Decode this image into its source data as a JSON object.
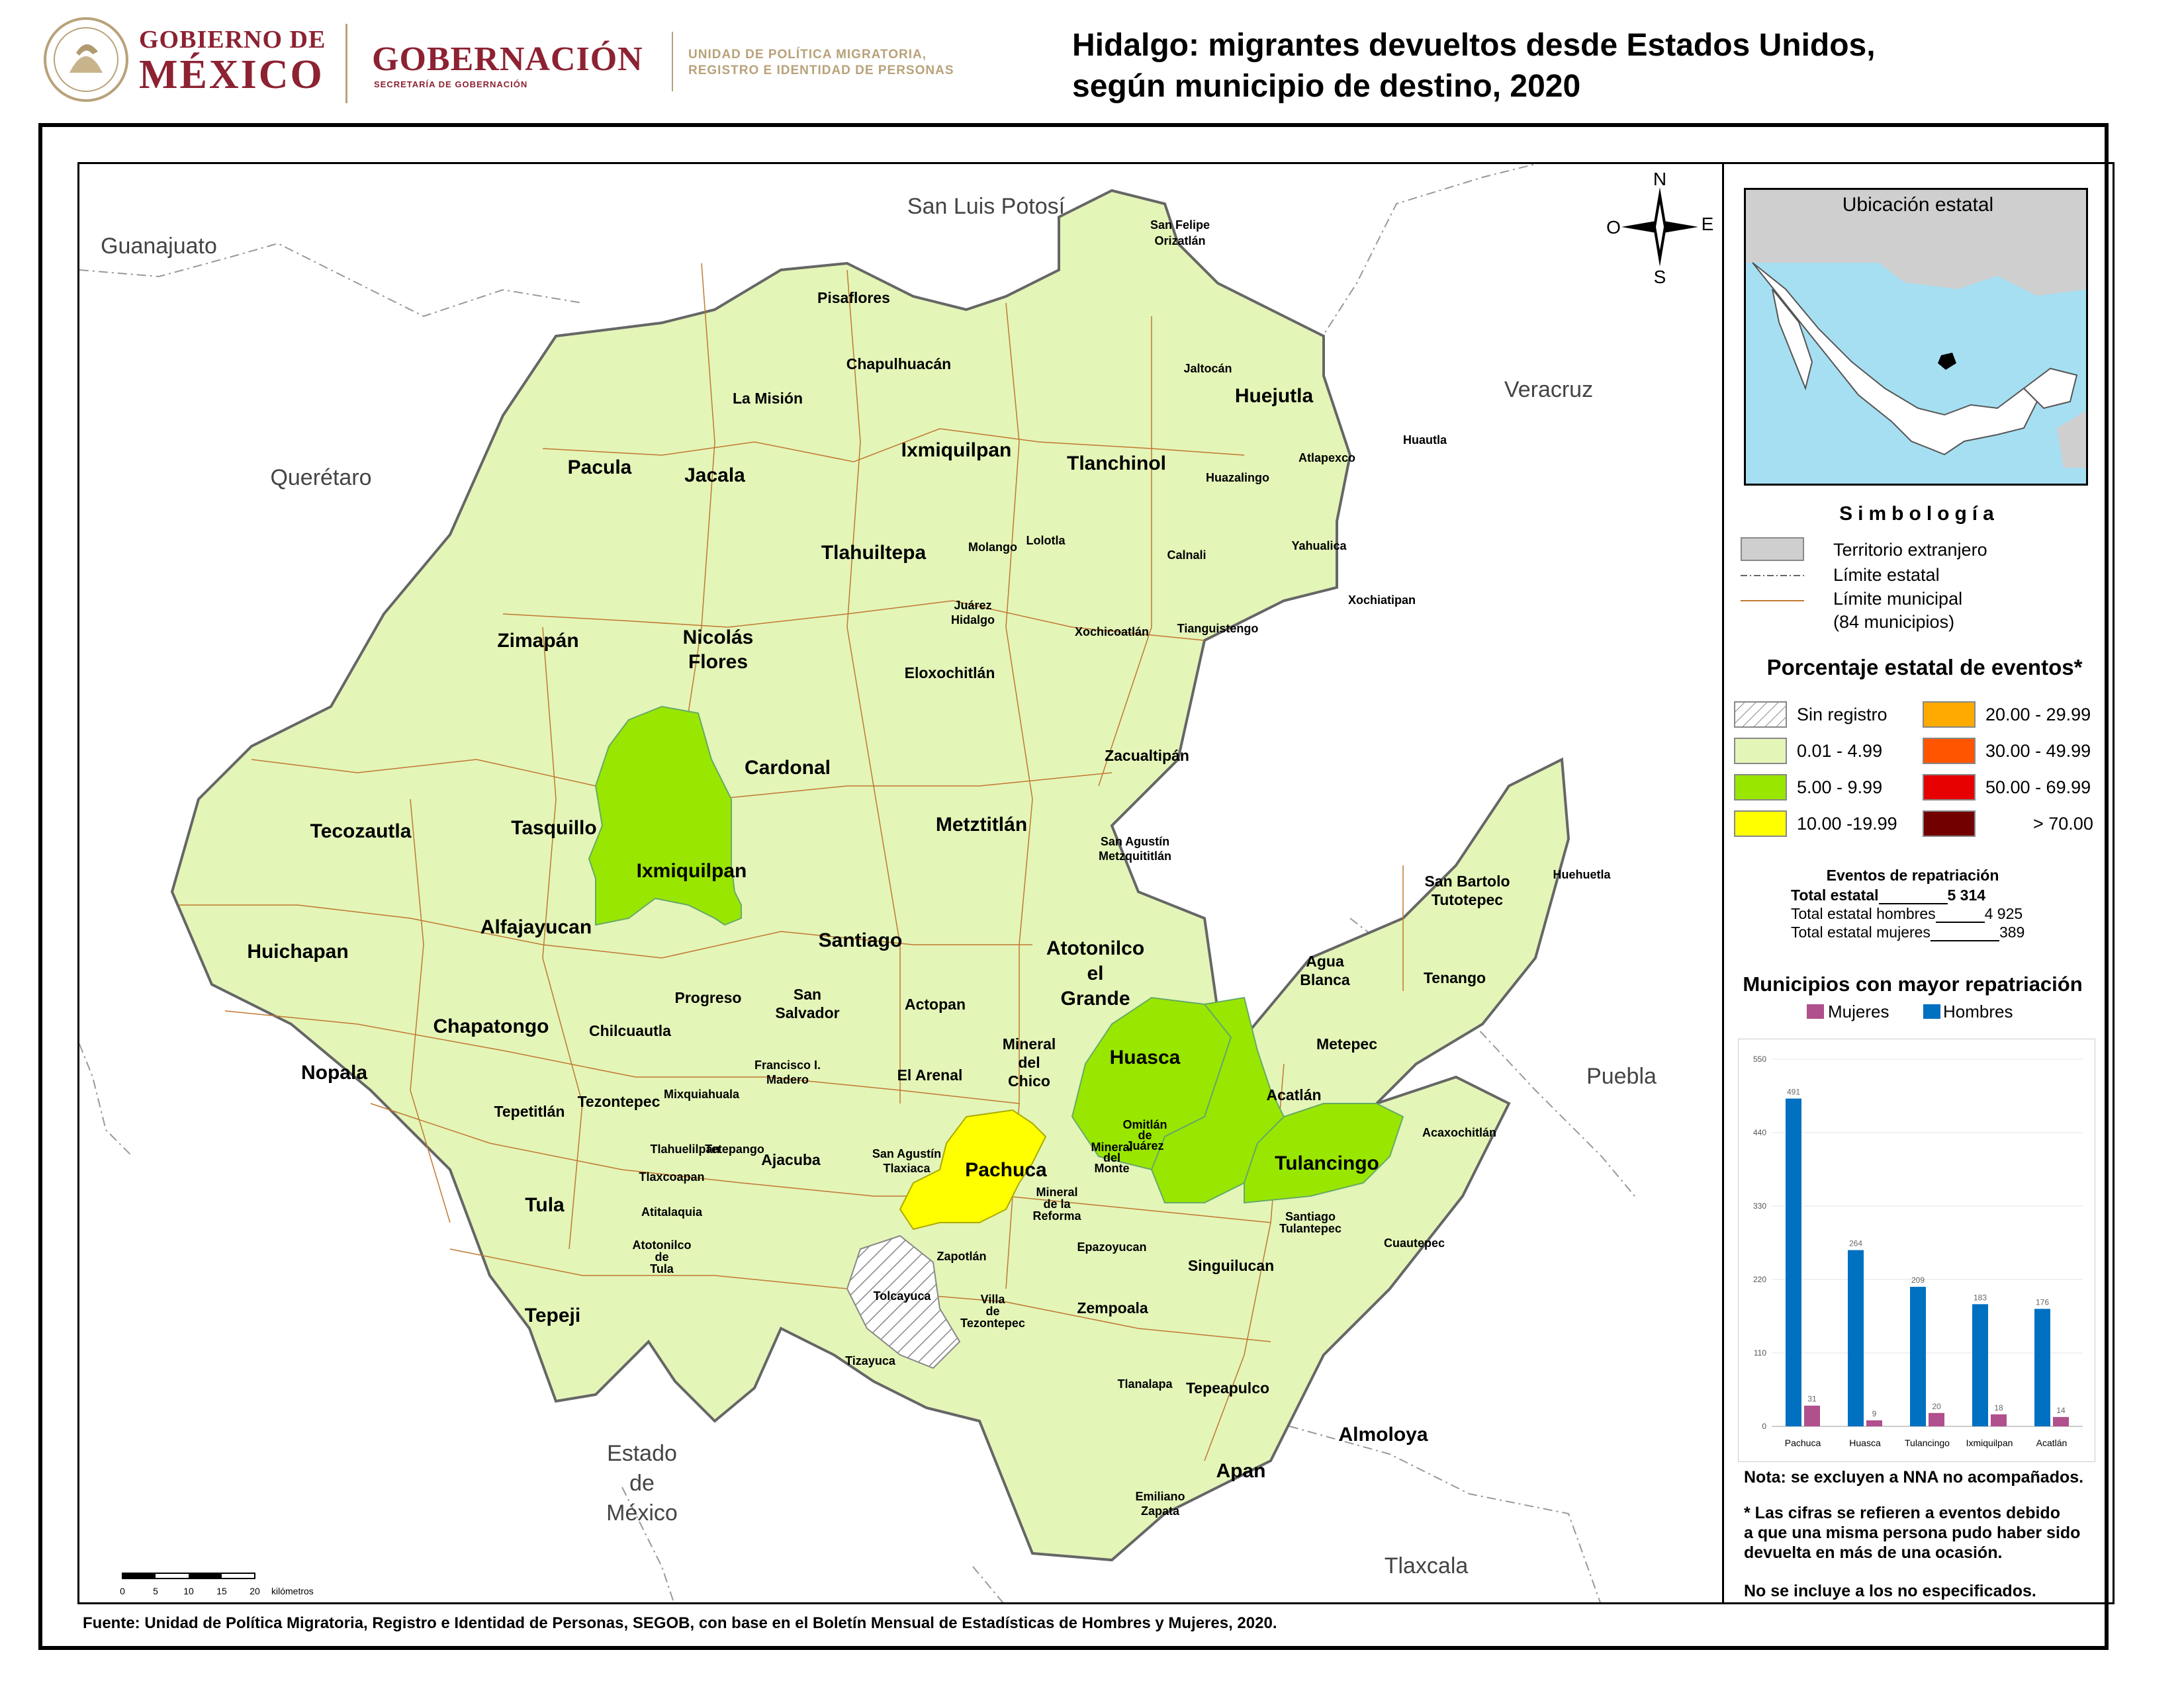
{
  "header": {
    "gov_line1": "GOBIERNO DE",
    "gov_line2": "MÉXICO",
    "ministry": "GOBERNACIÓN",
    "ministry_sub": "SECRETARÍA DE GOBERNACIÓN",
    "unit_line1": "UNIDAD DE POLÍTICA MIGRATORIA,",
    "unit_line2": "REGISTRO E IDENTIDAD DE PERSONAS"
  },
  "title": {
    "line1": "Hidalgo: migrantes devueltos desde Estados Unidos,",
    "line2": "según municipio de destino, 2020"
  },
  "neighbors": {
    "guanajuato": "Guanajuato",
    "slp": "San Luis Potosí",
    "queretaro": "Querétaro",
    "veracruz": "Veracruz",
    "puebla": "Puebla",
    "edomex_1": "Estado",
    "edomex_2": "de",
    "edomex_3": "México",
    "tlaxcala": "Tlaxcala"
  },
  "compass": {
    "n": "N",
    "s": "S",
    "e": "E",
    "w": "O"
  },
  "municipalities": {
    "san_felipe_1": "San Felipe",
    "san_felipe_2": "Orizatlán",
    "pisaflores": "Pisaflores",
    "chapulhuacan": "Chapulhuacán",
    "la_mision": "La Misión",
    "jaltocan": "Jaltocán",
    "huejutla": "Huejutla",
    "huautla": "Huautla",
    "pacula": "Pacula",
    "jacala": "Jacala",
    "ixmiquilpan_n": "Ixmiquilpan",
    "tlanchinol": "Tlanchinol",
    "atlapexco": "Atlapexco",
    "huazalingo": "Huazalingo",
    "molango": "Molango",
    "lolotla": "Lolotla",
    "tlahuiltepa": "Tlahuiltepa",
    "calnali": "Calnali",
    "yahualica": "Yahualica",
    "xochiatipan": "Xochiatipan",
    "juarez_1": "Juárez",
    "juarez_2": "Hidalgo",
    "xochicoatlan": "Xochicoatlán",
    "tianguistengo": "Tianguistengo",
    "zimapan": "Zimapán",
    "nicolas_1": "Nicolás",
    "nicolas_2": "Flores",
    "eloxochitlan": "Eloxochitlán",
    "cardonal": "Cardonal",
    "zacualtipan": "Zacualtipán",
    "tecozautla": "Tecozautla",
    "tasquillo": "Tasquillo",
    "ixmiquilpan": "Ixmiquilpan",
    "metztitlan": "Metztitlán",
    "sam_1": "San Agustín",
    "sam_2": "Metzquititlán",
    "sbt_1": "San Bartolo",
    "sbt_2": "Tutotepec",
    "huehuetla": "Huehuetla",
    "huichapan": "Huichapan",
    "alfajayucan": "Alfajayucan",
    "santiago": "Santiago",
    "atotonilco_1": "Atotonilco",
    "atotonilco_2": "el",
    "atotonilco_3": "Grande",
    "agua_1": "Agua",
    "agua_2": "Blanca",
    "tenango": "Tenango",
    "progreso": "Progreso",
    "san_salvador_1": "San",
    "san_salvador_2": "Salvador",
    "actopan": "Actopan",
    "chapatongo": "Chapatongo",
    "chilcuautla": "Chilcuautla",
    "mineral_chico_1": "Mineral",
    "mineral_chico_2": "del",
    "mineral_chico_3": "Chico",
    "huasca": "Huasca",
    "metepec": "Metepec",
    "nopala": "Nopala",
    "fim_1": "Francisco I.",
    "fim_2": "Madero",
    "el_arenal": "El Arenal",
    "acatlan": "Acatlán",
    "tepetitlan": "Tepetitlán",
    "tezontepec": "Tezontepec",
    "mixquiahuala": "Mixquiahuala",
    "omitlan_1": "Omitlán",
    "omitlan_2": "de",
    "omitlan_3": "Juárez",
    "acaxochitlan": "Acaxochitlán",
    "tlahuelilpan": "Tlahuelilpan",
    "tetepango": "Tetepango",
    "mdm_1": "Mineral",
    "mdm_2": "del",
    "mdm_3": "Monte",
    "ajacuba": "Ajacuba",
    "sat_1": "San Agustín",
    "sat_2": "Tlaxiaca",
    "tulancingo": "Tulancingo",
    "tlaxcoapan": "Tlaxcoapan",
    "pachuca": "Pachuca",
    "mr_1": "Mineral",
    "mr_2": "de la",
    "mr_3": "Reforma",
    "tula": "Tula",
    "atitalaquia": "Atitalaquia",
    "st_1": "Santiago",
    "st_2": "Tulantepec",
    "cuautepec": "Cuautepec",
    "att_1": "Atotonilco",
    "att_2": "de",
    "att_3": "Tula",
    "zapotlan": "Zapotlán",
    "epazoyucan": "Epazoyucan",
    "singuilucan": "Singuilucan",
    "tolcayuca": "Tolcayuca",
    "vt_1": "Villa",
    "vt_2": "de",
    "vt_3": "Tezontepec",
    "zempoala": "Zempoala",
    "tepeji": "Tepeji",
    "tizayuca": "Tizayuca",
    "tlanalapa": "Tlanalapa",
    "tepeapulco": "Tepeapulco",
    "almoloya": "Almoloya",
    "apan": "Apan",
    "ez_1": "Emiliano",
    "ez_2": "Zapata"
  },
  "scale_bar": {
    "ticks": [
      "0",
      "5",
      "10",
      "15",
      "20"
    ],
    "unit": "kilómetros"
  },
  "inset": {
    "title": "Ubicación estatal"
  },
  "legend": {
    "title": "Simbología",
    "foreign": "Territorio extranjero",
    "state_limit": "Límite estatal",
    "mun_limit_1": "Límite municipal",
    "mun_limit_2": "(84 municipios)",
    "pct_title": "Porcentaje estatal de eventos*",
    "classes": [
      {
        "label": "Sin registro",
        "color": "hatch"
      },
      {
        "label": "0.01  - 4.99",
        "color": "#e4f5b8"
      },
      {
        "label": "5.00  - 9.99",
        "color": "#99e600"
      },
      {
        "label": "10.00 -19.99",
        "color": "#ffff00"
      },
      {
        "label": "20.00 - 29.99",
        "color": "#ffaa00"
      },
      {
        "label": "30.00 - 49.99",
        "color": "#ff5500"
      },
      {
        "label": "50.00 - 69.99",
        "color": "#e60000"
      },
      {
        "label": "> 70.00",
        "color": "#730000"
      }
    ]
  },
  "events": {
    "title": "Eventos de repatriación",
    "total_label": "Total estatal",
    "total_value": "5 314",
    "men_label": "Total estatal hombres",
    "men_value": "4 925",
    "women_label": "Total estatal mujeres",
    "women_value": "389"
  },
  "chart_title": "Municipios con mayor repatriación",
  "chart_data": {
    "type": "bar",
    "categories": [
      "Pachuca",
      "Huasca",
      "Tulancingo",
      "Ixmiquilpan",
      "Acatlán"
    ],
    "series": [
      {
        "name": "Hombres",
        "values": [
          491,
          264,
          209,
          183,
          176
        ],
        "color": "#0070c0"
      },
      {
        "name": "Mujeres",
        "values": [
          31,
          9,
          20,
          18,
          14
        ],
        "color": "#b0508c"
      }
    ],
    "yticks": [
      "0",
      "110",
      "220",
      "330",
      "440",
      "550"
    ],
    "ylim": [
      0,
      550
    ],
    "legend_order": [
      "Mujeres",
      "Hombres"
    ]
  },
  "notes": {
    "n1": "Nota: se excluyen a NNA no acompañados.",
    "n2_1": "* Las cifras se refieren a eventos debido",
    "n2_2": "a que una misma persona pudo haber sido",
    "n2_3": "devuelta en más de una ocasión.",
    "n3": "No se incluye a los no especificados."
  },
  "source": "Fuente: Unidad de Política Migratoria, Registro e Identidad de Personas, SEGOB, con base en el Boletín Mensual de Estadísticas de Hombres y Mujeres, 2020."
}
